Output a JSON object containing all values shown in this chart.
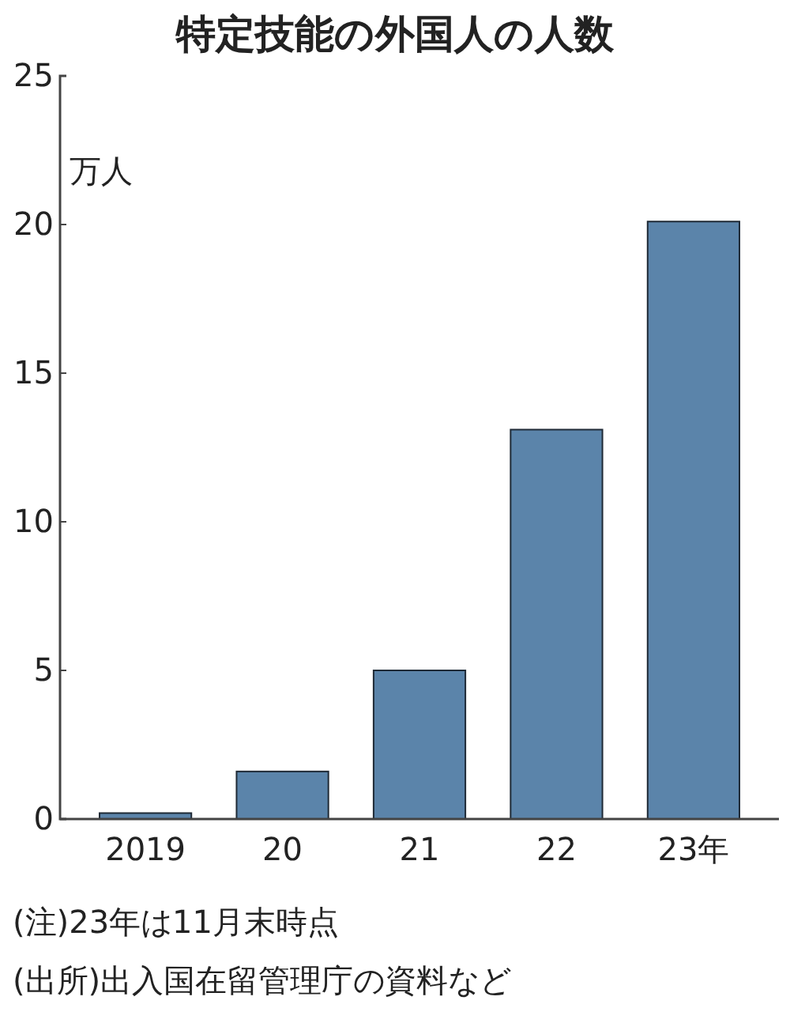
{
  "chart_data": {
    "type": "bar",
    "title": "特定技能の外国人の人数",
    "ylabel": "万人",
    "categories": [
      "2019",
      "20",
      "21",
      "22",
      "23年"
    ],
    "values": [
      0.2,
      1.6,
      5.0,
      13.1,
      20.1
    ],
    "color": "#5b84aa",
    "ylim": [
      0,
      25
    ],
    "yticks": [
      0,
      5,
      10,
      15,
      20,
      25
    ],
    "grid": false,
    "annotations": [
      "(注)23年は11月末時点",
      "(出所)出入国在留管理庁の資料など"
    ]
  }
}
